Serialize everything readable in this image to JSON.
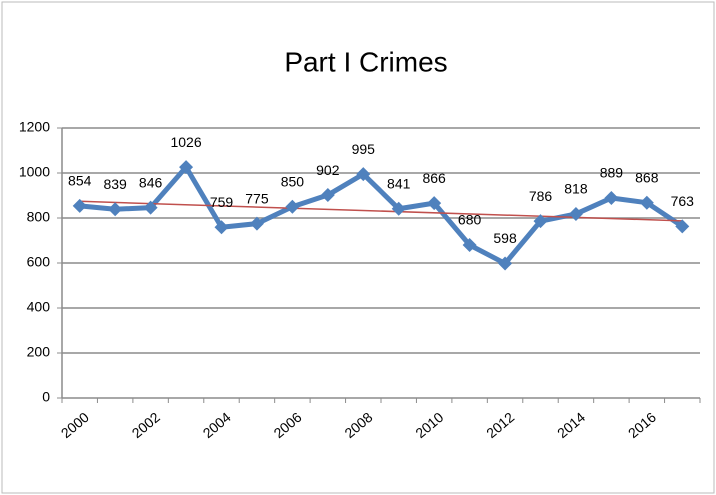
{
  "chart_data": {
    "type": "line",
    "title": "Part I Crimes",
    "categories": [
      "2000",
      null,
      "2002",
      null,
      "2004",
      null,
      "2006",
      null,
      "2008",
      null,
      "2010",
      null,
      "2012",
      null,
      "2014",
      null,
      "2016",
      null
    ],
    "series": [
      {
        "name": "Part I Crimes",
        "color": "#4f81bd",
        "values": [
          854,
          839,
          846,
          1026,
          759,
          775,
          850,
          902,
          995,
          841,
          866,
          680,
          598,
          786,
          818,
          889,
          868,
          763
        ]
      }
    ],
    "ylim": [
      0,
      1200
    ],
    "yticks": [
      0,
      200,
      400,
      600,
      800,
      1000,
      1200
    ],
    "grid": true,
    "trendline": {
      "type": "linear",
      "color": "#c0504d"
    }
  }
}
